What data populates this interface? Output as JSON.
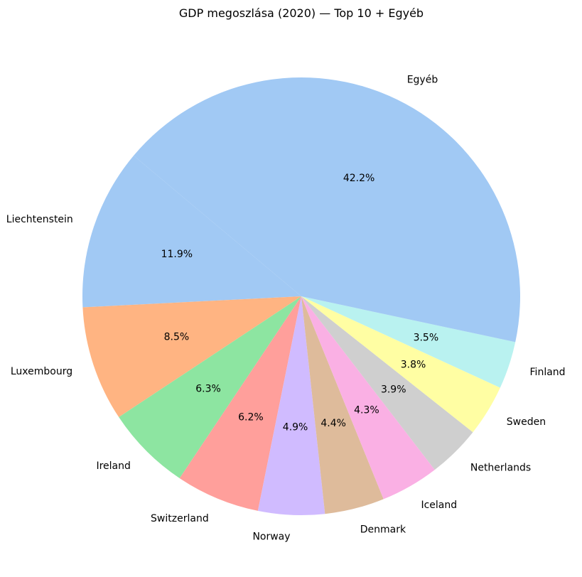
{
  "chart_data": {
    "type": "pie",
    "title": "GDP megoszlása (2020) — Top 10 + Egyéb",
    "slices": [
      {
        "label": "Liechtenstein",
        "value": 11.9,
        "pct_label": "11.9%",
        "color": "#a1c9f4"
      },
      {
        "label": "Luxembourg",
        "value": 8.5,
        "pct_label": "8.5%",
        "color": "#ffb482"
      },
      {
        "label": "Ireland",
        "value": 6.3,
        "pct_label": "6.3%",
        "color": "#8de5a1"
      },
      {
        "label": "Switzerland",
        "value": 6.2,
        "pct_label": "6.2%",
        "color": "#ff9f9b"
      },
      {
        "label": "Norway",
        "value": 4.9,
        "pct_label": "4.9%",
        "color": "#d0bbff"
      },
      {
        "label": "Denmark",
        "value": 4.4,
        "pct_label": "4.4%",
        "color": "#debb9b"
      },
      {
        "label": "Iceland",
        "value": 4.3,
        "pct_label": "4.3%",
        "color": "#fab0e4"
      },
      {
        "label": "Netherlands",
        "value": 3.9,
        "pct_label": "3.9%",
        "color": "#cfcfcf"
      },
      {
        "label": "Sweden",
        "value": 3.8,
        "pct_label": "3.8%",
        "color": "#fffea3"
      },
      {
        "label": "Finland",
        "value": 3.5,
        "pct_label": "3.5%",
        "color": "#b9f2f0"
      },
      {
        "label": "Egyéb",
        "value": 42.2,
        "pct_label": "42.2%",
        "color": "#a1c9f4"
      }
    ],
    "start_angle_deg": 140,
    "direction": "counterclockwise",
    "legend": "none"
  }
}
